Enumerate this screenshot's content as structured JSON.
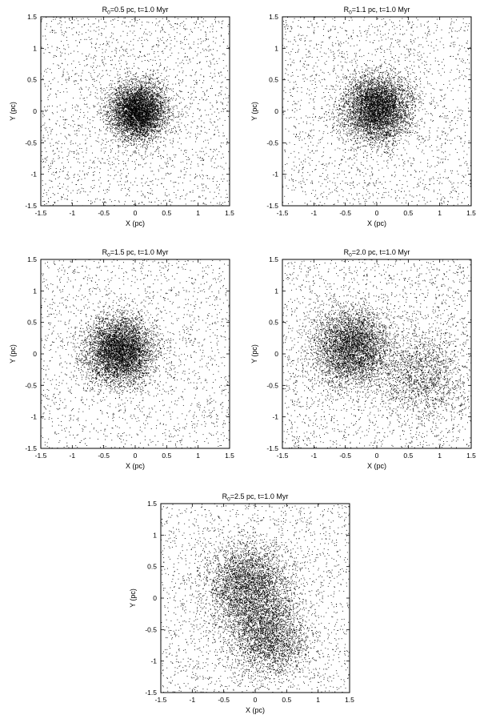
{
  "chart_data": [
    {
      "type": "scatter",
      "title_main": "R",
      "title_sub": "0",
      "title_rest": "=0.5 pc, t=1.0 Myr",
      "xlabel": "X (pc)",
      "ylabel": "Y (pc)",
      "xlim": [
        -1.5,
        1.5
      ],
      "ylim": [
        -1.5,
        1.5
      ],
      "xticks": [
        "-1.5",
        "-1",
        "-0.5",
        "0",
        "0.5",
        "1",
        "1.5"
      ],
      "yticks": [
        "-1.5",
        "-1",
        "-0.5",
        "0",
        "0.5",
        "1",
        "1.5"
      ],
      "grid": false,
      "color": "#000000",
      "clumps": [
        {
          "cx": 0.05,
          "cy": 0.0,
          "sigma": 0.22,
          "n": 5200
        }
      ],
      "background_n": 2200
    },
    {
      "type": "scatter",
      "title_main": "R",
      "title_sub": "0",
      "title_rest": "=1.1 pc, t=1.0 Myr",
      "xlabel": "X (pc)",
      "ylabel": "Y (pc)",
      "xlim": [
        -1.5,
        1.5
      ],
      "ylim": [
        -1.5,
        1.5
      ],
      "xticks": [
        "-1.5",
        "-1",
        "-0.5",
        "0",
        "0.5",
        "1",
        "1.5"
      ],
      "yticks": [
        "-1.5",
        "-1",
        "-0.5",
        "0",
        "0.5",
        "1",
        "1.5"
      ],
      "grid": false,
      "color": "#000000",
      "clumps": [
        {
          "cx": 0.0,
          "cy": 0.05,
          "sigma": 0.26,
          "n": 5200
        }
      ],
      "background_n": 2000
    },
    {
      "type": "scatter",
      "title_main": "R",
      "title_sub": "0",
      "title_rest": "=1.5 pc, t=1.0 Myr",
      "xlabel": "X (pc)",
      "ylabel": "Y (pc)",
      "xlim": [
        -1.5,
        1.5
      ],
      "ylim": [
        -1.5,
        1.5
      ],
      "xticks": [
        "-1.5",
        "-1",
        "-0.5",
        "0",
        "0.5",
        "1",
        "1.5"
      ],
      "yticks": [
        "-1.5",
        "-1",
        "-0.5",
        "0",
        "0.5",
        "1",
        "1.5"
      ],
      "grid": false,
      "color": "#000000",
      "clumps": [
        {
          "cx": -0.25,
          "cy": 0.05,
          "sigma": 0.27,
          "n": 5200
        }
      ],
      "background_n": 1900
    },
    {
      "type": "scatter",
      "title_main": "R",
      "title_sub": "0",
      "title_rest": "=2.0 pc, t=1.0 Myr",
      "xlabel": "X (pc)",
      "ylabel": "Y (pc)",
      "xlim": [
        -1.5,
        1.5
      ],
      "ylim": [
        -1.5,
        1.5
      ],
      "xticks": [
        "-1.5",
        "-1",
        "-0.5",
        "0",
        "0.5",
        "1",
        "1.5"
      ],
      "yticks": [
        "-1.5",
        "-1",
        "-0.5",
        "0",
        "0.5",
        "1",
        "1.5"
      ],
      "grid": false,
      "color": "#000000",
      "clumps": [
        {
          "cx": -0.4,
          "cy": 0.1,
          "sigma": 0.3,
          "n": 4200
        },
        {
          "cx": 0.7,
          "cy": -0.35,
          "sigma": 0.35,
          "n": 1500
        }
      ],
      "background_n": 2300
    },
    {
      "type": "scatter",
      "title_main": "R",
      "title_sub": "0",
      "title_rest": "=2.5 pc, t=1.0 Myr",
      "xlabel": "X (pc)",
      "ylabel": "Y (pc)",
      "xlim": [
        -1.5,
        1.5
      ],
      "ylim": [
        -1.5,
        1.5
      ],
      "xticks": [
        "-1.5",
        "-1",
        "-0.5",
        "0",
        "0.5",
        "1",
        "1.5"
      ],
      "yticks": [
        "-1.5",
        "-1",
        "-0.5",
        "0",
        "0.5",
        "1",
        "1.5"
      ],
      "grid": false,
      "color": "#000000",
      "clumps": [
        {
          "cx": -0.1,
          "cy": 0.2,
          "sigma": 0.33,
          "n": 3400
        },
        {
          "cx": 0.2,
          "cy": -0.6,
          "sigma": 0.32,
          "n": 2800
        }
      ],
      "background_n": 2000
    }
  ]
}
